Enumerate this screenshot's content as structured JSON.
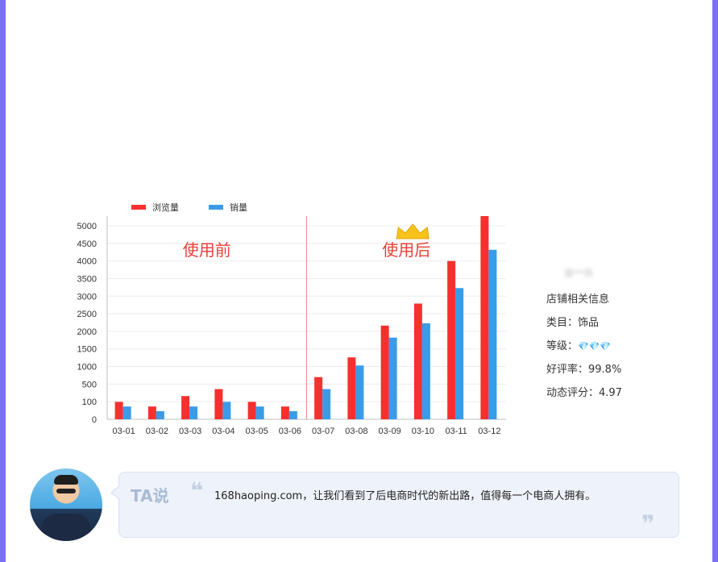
{
  "theme": {
    "edge_color": "#7b6ff5",
    "bar_color_views": "#f5302e",
    "bar_color_sales": "#3a9be8",
    "divider_color": "#f08a80",
    "label_color": "#e8403a"
  },
  "chart_data": {
    "type": "bar",
    "categories": [
      "03-01",
      "03-02",
      "03-03",
      "03-04",
      "03-05",
      "03-06",
      "03-07",
      "03-08",
      "03-09",
      "03-10",
      "03-11",
      "03-12"
    ],
    "series": [
      {
        "name": "浏览量",
        "values": [
          450,
          330,
          600,
          780,
          450,
          330,
          1090,
          1600,
          2420,
          2990,
          4090,
          5250
        ]
      },
      {
        "name": "销量",
        "values": [
          330,
          210,
          330,
          450,
          330,
          210,
          780,
          1390,
          2110,
          2480,
          3390,
          4380
        ]
      }
    ],
    "yticks": [
      "5000",
      "4500",
      "4000",
      "3500",
      "3000",
      "2500",
      "2000",
      "1500",
      "1000",
      "500",
      "100",
      "0"
    ],
    "grid": true,
    "legend_position": "top-left",
    "annotations": {
      "before": "使用前",
      "after": "使用后"
    },
    "divider_after_category": "03-06"
  },
  "store": {
    "name": "康**饰",
    "title": "店铺相关信息",
    "category": "类目：饰品",
    "level_label": "等级：",
    "level_icon": "diamond-icon",
    "level_gems": "💎💎💎",
    "rating": "好评率：99.8%",
    "dynamic_score": "动态评分：4.97"
  },
  "testimonial": {
    "label": "TA说",
    "open_quote": "❝",
    "close_quote": "❞",
    "text": "168haoping.com，让我们看到了后电商时代的新出路，值得每一个电商人拥有。"
  }
}
